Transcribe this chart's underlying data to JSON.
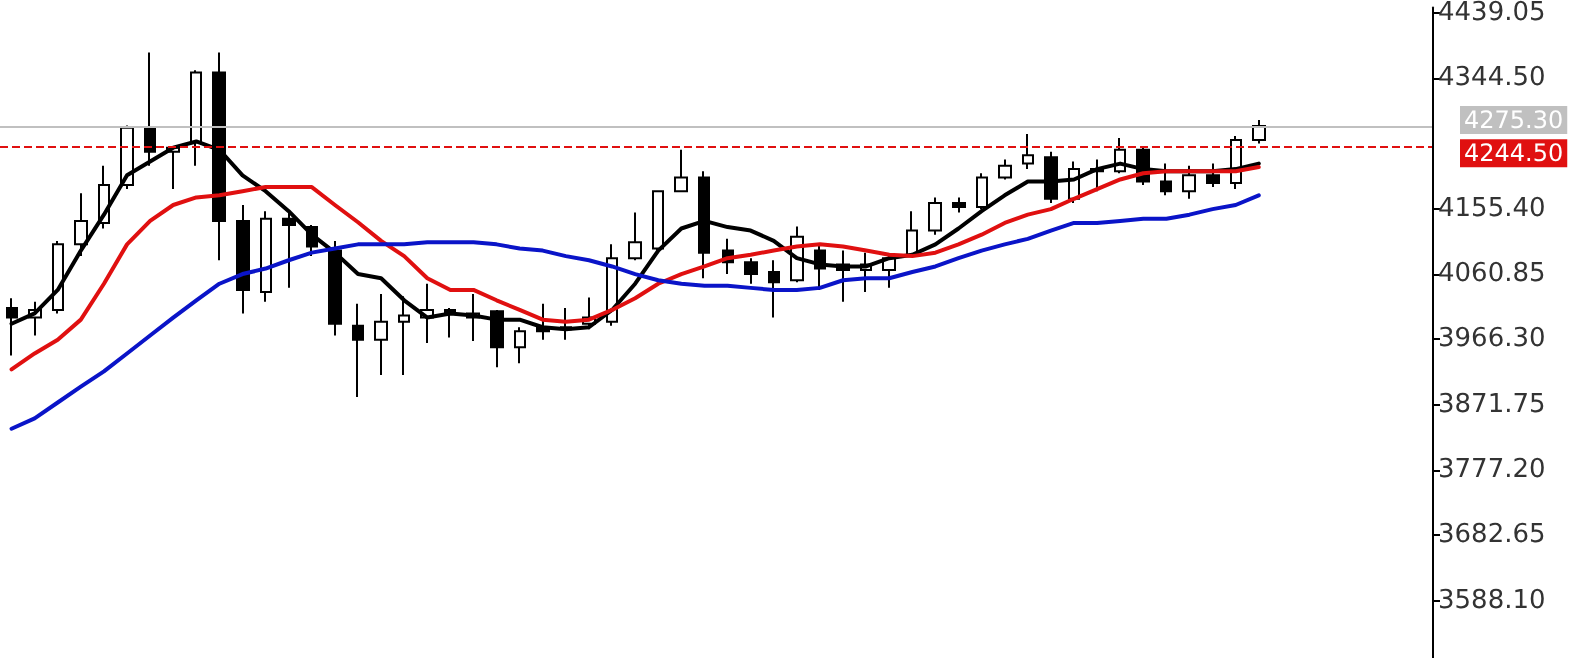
{
  "chart_data": {
    "type": "candlestick",
    "categories": [
      null,
      null,
      null,
      null,
      null,
      null,
      null,
      null,
      null,
      null,
      null,
      null,
      null,
      null,
      null,
      null,
      null,
      null,
      null,
      null,
      null,
      null,
      null,
      null,
      null,
      null,
      null,
      null,
      null,
      null,
      null,
      null,
      null,
      null,
      null,
      null,
      null,
      null,
      null,
      null,
      null,
      null,
      null,
      null,
      null,
      null,
      null,
      null,
      null,
      null,
      null,
      null,
      null,
      null,
      null
    ],
    "ohlc": [
      [
        4012,
        4026,
        3943,
        3998
      ],
      [
        3998,
        4021,
        3972,
        4009
      ],
      [
        4009,
        4109,
        4004,
        4104
      ],
      [
        4104,
        4178,
        4087,
        4138
      ],
      [
        4135,
        4218,
        4127,
        4190
      ],
      [
        4190,
        4276,
        4184,
        4273
      ],
      [
        4273,
        4382,
        4218,
        4238
      ],
      [
        4238,
        4244,
        4184,
        4244
      ],
      [
        4252,
        4356,
        4218,
        4353
      ],
      [
        4353,
        4382,
        4081,
        4138
      ],
      [
        4138,
        4161,
        4004,
        4038
      ],
      [
        4035,
        4152,
        4021,
        4141
      ],
      [
        4141,
        4152,
        4041,
        4132
      ],
      [
        4129,
        4132,
        4087,
        4101
      ],
      [
        4095,
        4109,
        3972,
        3989
      ],
      [
        3986,
        4018,
        3883,
        3966
      ],
      [
        3966,
        4032,
        3915,
        3992
      ],
      [
        3992,
        4029,
        3915,
        4001
      ],
      [
        3998,
        4047,
        3961,
        4009
      ],
      [
        4009,
        4012,
        3969,
        4004
      ],
      [
        3998,
        4032,
        3964,
        4004
      ],
      [
        4007,
        4009,
        3926,
        3955
      ],
      [
        3955,
        3984,
        3932,
        3978
      ],
      [
        3984,
        4018,
        3966,
        3978
      ],
      [
        3984,
        4012,
        3966,
        3981
      ],
      [
        3989,
        4027,
        3981,
        3998
      ],
      [
        3992,
        4104,
        3986,
        4084
      ],
      [
        4084,
        4150,
        4081,
        4107
      ],
      [
        4098,
        4181,
        4095,
        4181
      ],
      [
        4181,
        4241,
        4181,
        4201
      ],
      [
        4201,
        4210,
        4055,
        4092
      ],
      [
        4095,
        4112,
        4061,
        4078
      ],
      [
        4078,
        4084,
        4047,
        4061
      ],
      [
        4064,
        4081,
        3998,
        4049
      ],
      [
        4052,
        4130,
        4049,
        4115
      ],
      [
        4095,
        4104,
        4038,
        4069
      ],
      [
        4075,
        4095,
        4021,
        4067
      ],
      [
        4067,
        4092,
        4035,
        4075
      ],
      [
        4067,
        4089,
        4041,
        4084
      ],
      [
        4089,
        4152,
        4087,
        4124
      ],
      [
        4124,
        4172,
        4118,
        4164
      ],
      [
        4164,
        4172,
        4150,
        4158
      ],
      [
        4158,
        4207,
        4155,
        4201
      ],
      [
        4201,
        4227,
        4198,
        4218
      ],
      [
        4221,
        4264,
        4213,
        4233
      ],
      [
        4230,
        4238,
        4164,
        4170
      ],
      [
        4170,
        4224,
        4164,
        4213
      ],
      [
        4213,
        4227,
        4181,
        4210
      ],
      [
        4210,
        4258,
        4207,
        4241
      ],
      [
        4241,
        4244,
        4190,
        4195
      ],
      [
        4195,
        4221,
        4175,
        4181
      ],
      [
        4181,
        4218,
        4170,
        4204
      ],
      [
        4204,
        4221,
        4187,
        4193
      ],
      [
        4193,
        4261,
        4184,
        4255
      ],
      [
        4255,
        4284,
        4250,
        4275.3
      ]
    ],
    "series": [
      {
        "type": "line",
        "color": "#000000",
        "values": [
          3989,
          4004,
          4038,
          4095,
          4147,
          4204,
          4224,
          4244,
          4253,
          4241,
          4204,
          4181,
          4152,
          4118,
          4092,
          4061,
          4055,
          4023,
          3998,
          4004,
          4001,
          3995,
          3995,
          3984,
          3981,
          3984,
          4009,
          4047,
          4095,
          4127,
          4138,
          4129,
          4124,
          4109,
          4084,
          4075,
          4072,
          4072,
          4084,
          4089,
          4104,
          4127,
          4152,
          4175,
          4195,
          4195,
          4198,
          4213,
          4221,
          4213,
          4210,
          4210,
          4210,
          4213,
          4221
        ]
      },
      {
        "type": "line",
        "color": "#e01010",
        "values": [
          3923,
          3946,
          3966,
          3995,
          4047,
          4104,
          4138,
          4161,
          4172,
          4175,
          4181,
          4187,
          4187,
          4187,
          4161,
          4136,
          4109,
          4087,
          4055,
          4038,
          4038,
          4023,
          4009,
          3995,
          3992,
          3995,
          4009,
          4026,
          4047,
          4061,
          4072,
          4084,
          4089,
          4095,
          4101,
          4104,
          4101,
          4095,
          4089,
          4087,
          4092,
          4104,
          4118,
          4135,
          4147,
          4155,
          4170,
          4184,
          4198,
          4207,
          4210,
          4210,
          4210,
          4210,
          4216
        ]
      },
      {
        "type": "line",
        "color": "#0a14c8",
        "values": [
          3837,
          3852,
          3875,
          3898,
          3920,
          3946,
          3972,
          3998,
          4023,
          4047,
          4061,
          4069,
          4081,
          4092,
          4098,
          4104,
          4104,
          4104,
          4107,
          4107,
          4107,
          4104,
          4098,
          4095,
          4087,
          4081,
          4072,
          4061,
          4052,
          4047,
          4044,
          4044,
          4041,
          4038,
          4038,
          4041,
          4052,
          4055,
          4055,
          4064,
          4072,
          4084,
          4095,
          4104,
          4112,
          4124,
          4135,
          4135,
          4138,
          4141,
          4141,
          4147,
          4155,
          4161,
          4175
        ]
      }
    ],
    "ylim": [
      3505,
      4447
    ],
    "yticks": [
      {
        "value": 4439.05,
        "label": "4439.05"
      },
      {
        "value": 4344.5,
        "label": "4344.50"
      },
      {
        "value": 4155.4,
        "label": "4155.40"
      },
      {
        "value": 4060.85,
        "label": "4060.85"
      },
      {
        "value": 3966.3,
        "label": "3966.30"
      },
      {
        "value": 3871.75,
        "label": "3871.75"
      },
      {
        "value": 3777.2,
        "label": "3777.20"
      },
      {
        "value": 3682.65,
        "label": "3682.65"
      },
      {
        "value": 3588.1,
        "label": "3588.10"
      }
    ],
    "ref_lines": [
      {
        "axis": "y",
        "value": 4275.3,
        "label": "4275.30",
        "color": "#c0c0c0",
        "line_style": "solid"
      },
      {
        "axis": "y",
        "value": 4244.5,
        "label": "4244.50",
        "color": "#e01010",
        "line_style": "dashed"
      }
    ],
    "tick_labels": "y",
    "grid": false,
    "marker": "none"
  }
}
